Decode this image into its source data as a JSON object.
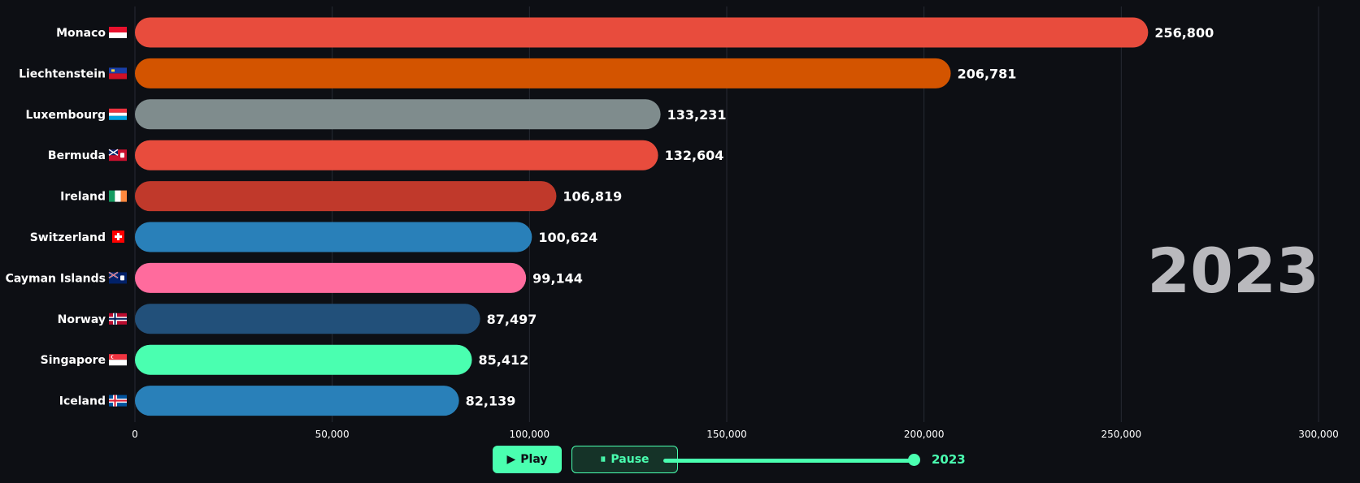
{
  "chart_data": {
    "type": "bar",
    "orientation": "horizontal",
    "year": "2023",
    "categories": [
      "Monaco",
      "Liechtenstein",
      "Luxembourg",
      "Bermuda",
      "Ireland",
      "Switzerland",
      "Cayman Islands",
      "Norway",
      "Singapore",
      "Iceland"
    ],
    "values": [
      256800,
      206781,
      133231,
      132604,
      106819,
      100624,
      99144,
      87497,
      85412,
      82139
    ],
    "value_labels": [
      "256,800",
      "206,781",
      "133,231",
      "132,604",
      "106,819",
      "100,624",
      "99,144",
      "87,497",
      "85,412",
      "82,139"
    ],
    "colors": [
      "#e84c3d",
      "#d35400",
      "#7f8c8d",
      "#e84c3d",
      "#c0392b",
      "#2980b9",
      "#ff6b9d",
      "#22507a",
      "#4affb0",
      "#2980b9"
    ],
    "flags": [
      "monaco-flag",
      "liechtenstein-flag",
      "luxembourg-flag",
      "bermuda-flag",
      "ireland-flag",
      "switzerland-flag",
      "cayman-islands-flag",
      "norway-flag",
      "singapore-flag",
      "iceland-flag"
    ],
    "xlim": [
      0,
      300000
    ],
    "xticks": [
      0,
      50000,
      100000,
      150000,
      200000,
      250000,
      300000
    ],
    "xtick_labels": [
      "0",
      "50,000",
      "100,000",
      "150,000",
      "200,000",
      "250,000",
      "300,000"
    ],
    "grid": true,
    "xlabel": "",
    "ylabel": ""
  },
  "controls": {
    "play_label": "Play",
    "pause_label": "Pause",
    "slider_value": "2023",
    "slider_fraction": 1.0
  },
  "colors": {
    "background": "#0d0f14",
    "accent": "#4affb0",
    "year_watermark": "#b9b9bd"
  }
}
